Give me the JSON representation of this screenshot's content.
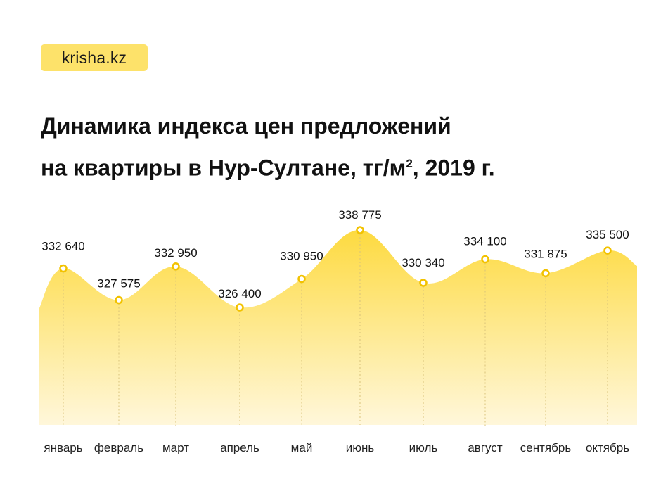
{
  "logo": {
    "text": "krisha.kz"
  },
  "title": {
    "line1": "Динамика индекса цен предложений",
    "line2_a": "на квартиры в Нур-Султане, тг/м",
    "line2_sup": "2",
    "line2_b": ", 2019 г."
  },
  "colors": {
    "accent": "#fde26a",
    "fill_top": "#fdd835",
    "fill_bottom": "#fff6d6",
    "marker": "#f2c200"
  },
  "chart_data": {
    "type": "area",
    "categories": [
      "январь",
      "февраль",
      "март",
      "апрель",
      "май",
      "июнь",
      "июль",
      "август",
      "сентябрь",
      "октябрь"
    ],
    "values": [
      332640,
      327575,
      332950,
      326400,
      330950,
      338775,
      330340,
      334100,
      331875,
      335500
    ],
    "value_labels": [
      "332 640",
      "327 575",
      "332 950",
      "326 400",
      "330 950",
      "338 775",
      "330 340",
      "334 100",
      "331 875",
      "335 500"
    ],
    "grid": false,
    "legend": "none"
  }
}
